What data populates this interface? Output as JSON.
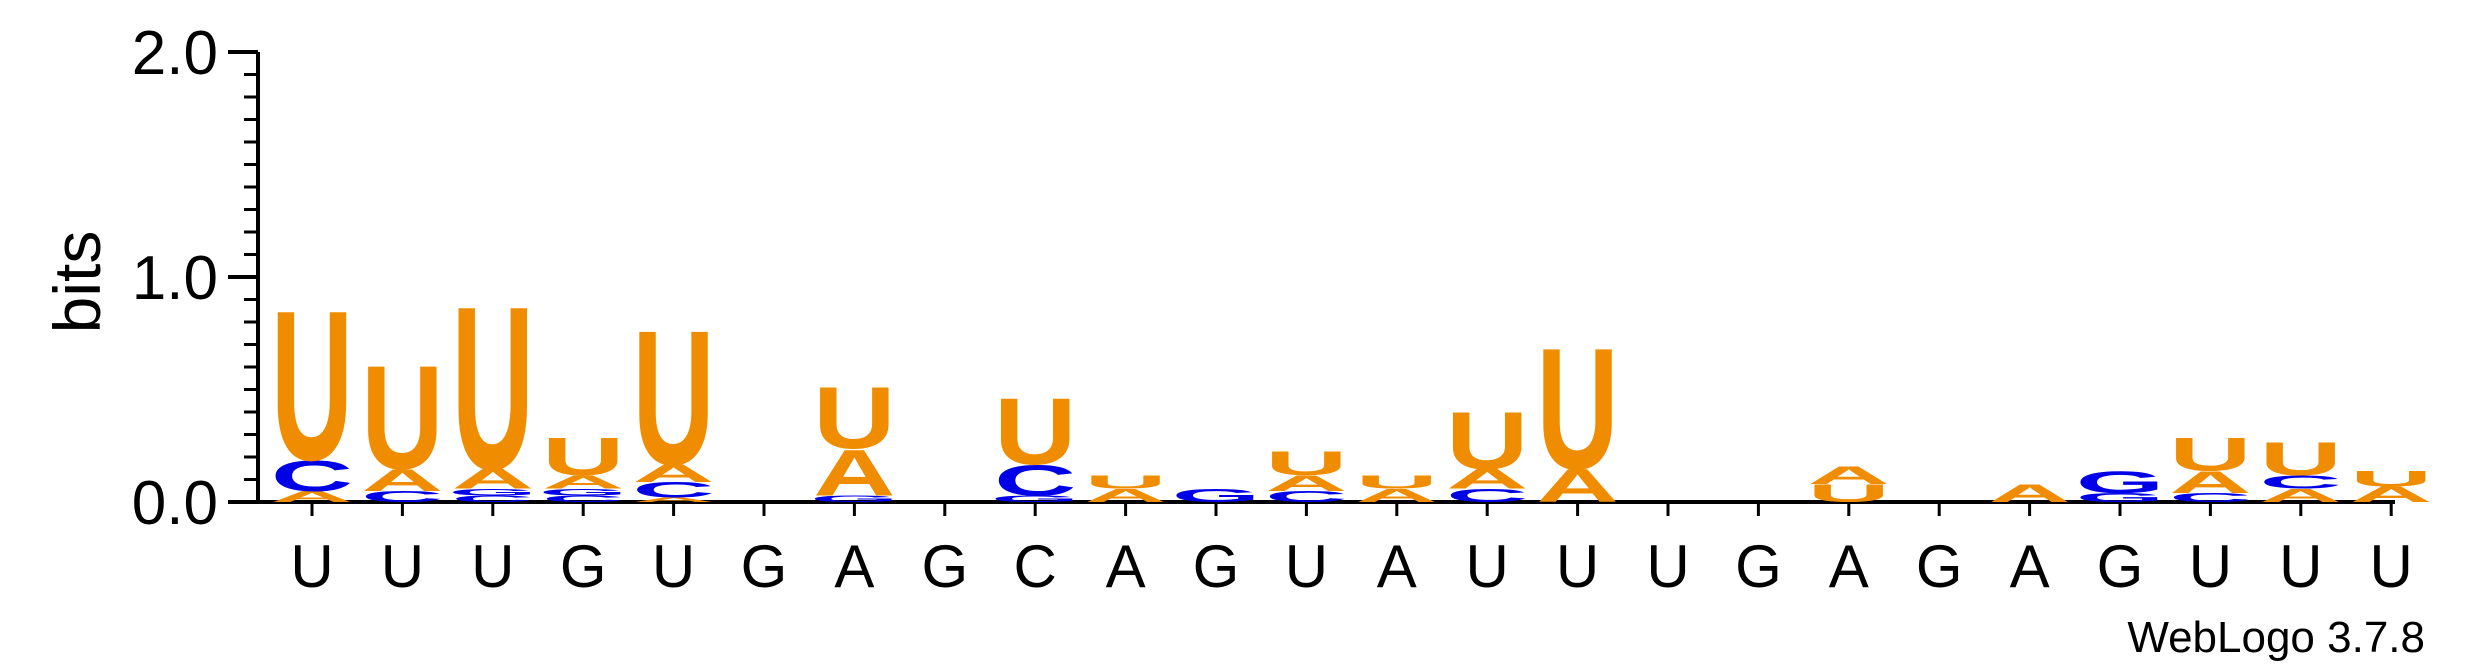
{
  "chart_data": {
    "type": "sequence-logo",
    "ylabel": "bits",
    "ylim": [
      0,
      2.0
    ],
    "yticks": [
      {
        "value": 0.0,
        "label": "0.0"
      },
      {
        "value": 1.0,
        "label": "1.0"
      },
      {
        "value": 2.0,
        "label": "2.0"
      }
    ],
    "x_tick_labels": [
      "U",
      "U",
      "U",
      "G",
      "U",
      "G",
      "A",
      "G",
      "C",
      "A",
      "G",
      "U",
      "A",
      "U",
      "U",
      "U",
      "G",
      "A",
      "G",
      "A",
      "G",
      "U",
      "U",
      "U"
    ],
    "colors": {
      "U": "#f08c00",
      "A": "#f08c00",
      "C": "#0000e6",
      "G": "#0000e6"
    },
    "positions": [
      {
        "stack": [
          {
            "base": "A",
            "bits": 0.05
          },
          {
            "base": "C",
            "bits": 0.14
          },
          {
            "base": "U",
            "bits": 0.68
          }
        ]
      },
      {
        "stack": [
          {
            "base": "C",
            "bits": 0.05
          },
          {
            "base": "A",
            "bits": 0.1
          },
          {
            "base": "U",
            "bits": 0.47
          }
        ]
      },
      {
        "stack": [
          {
            "base": "C",
            "bits": 0.03
          },
          {
            "base": "G",
            "bits": 0.03
          },
          {
            "base": "A",
            "bits": 0.09
          },
          {
            "base": "U",
            "bits": 0.74
          }
        ]
      },
      {
        "stack": [
          {
            "base": "C",
            "bits": 0.03
          },
          {
            "base": "G",
            "bits": 0.03
          },
          {
            "base": "A",
            "bits": 0.06
          },
          {
            "base": "U",
            "bits": 0.17
          }
        ]
      },
      {
        "stack": [
          {
            "base": "A",
            "bits": 0.02
          },
          {
            "base": "C",
            "bits": 0.07
          },
          {
            "base": "A",
            "bits": 0.08
          },
          {
            "base": "U",
            "bits": 0.61
          }
        ]
      },
      {
        "stack": []
      },
      {
        "stack": [
          {
            "base": "G",
            "bits": 0.03
          },
          {
            "base": "A",
            "bits": 0.21
          },
          {
            "base": "U",
            "bits": 0.28
          }
        ]
      },
      {
        "stack": []
      },
      {
        "stack": [
          {
            "base": "G",
            "bits": 0.03
          },
          {
            "base": "C",
            "bits": 0.14
          },
          {
            "base": "U",
            "bits": 0.3
          }
        ]
      },
      {
        "stack": [
          {
            "base": "A",
            "bits": 0.06
          },
          {
            "base": "U",
            "bits": 0.06
          }
        ]
      },
      {
        "stack": [
          {
            "base": "G",
            "bits": 0.06
          }
        ]
      },
      {
        "stack": [
          {
            "base": "C",
            "bits": 0.05
          },
          {
            "base": "A",
            "bits": 0.07
          },
          {
            "base": "U",
            "bits": 0.11
          }
        ]
      },
      {
        "stack": [
          {
            "base": "A",
            "bits": 0.06
          },
          {
            "base": "U",
            "bits": 0.06
          }
        ]
      },
      {
        "stack": [
          {
            "base": "C",
            "bits": 0.06
          },
          {
            "base": "A",
            "bits": 0.09
          },
          {
            "base": "U",
            "bits": 0.26
          }
        ]
      },
      {
        "stack": [
          {
            "base": "A",
            "bits": 0.15
          },
          {
            "base": "U",
            "bits": 0.55
          }
        ]
      },
      {
        "stack": []
      },
      {
        "stack": []
      },
      {
        "stack": [
          {
            "base": "U",
            "bits": 0.08
          },
          {
            "base": "A",
            "bits": 0.08
          }
        ]
      },
      {
        "stack": []
      },
      {
        "stack": [
          {
            "base": "A",
            "bits": 0.08
          }
        ]
      },
      {
        "stack": [
          {
            "base": "G",
            "bits": 0.04
          },
          {
            "base": "G",
            "bits": 0.1
          }
        ]
      },
      {
        "stack": [
          {
            "base": "C",
            "bits": 0.04
          },
          {
            "base": "A",
            "bits": 0.1
          },
          {
            "base": "U",
            "bits": 0.15
          }
        ]
      },
      {
        "stack": [
          {
            "base": "A",
            "bits": 0.06
          },
          {
            "base": "C",
            "bits": 0.06
          },
          {
            "base": "U",
            "bits": 0.15
          }
        ]
      },
      {
        "stack": [
          {
            "base": "A",
            "bits": 0.07
          },
          {
            "base": "U",
            "bits": 0.07
          }
        ]
      }
    ]
  },
  "credit": "WebLogo 3.7.8"
}
